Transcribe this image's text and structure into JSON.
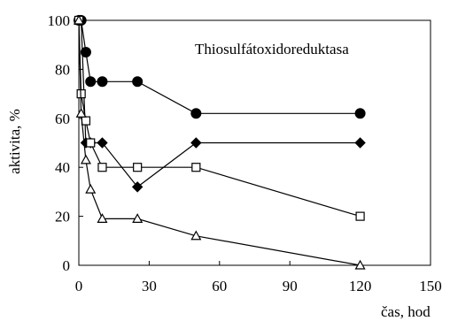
{
  "chart_data": {
    "type": "line",
    "annotation": "Thiosulfátoxidoreduktasa",
    "xlabel": "čas, hod",
    "ylabel": "aktivita, %",
    "xlim": [
      0,
      150
    ],
    "ylim": [
      0,
      100
    ],
    "x_ticks": [
      0,
      30,
      60,
      90,
      120,
      150
    ],
    "y_ticks": [
      0,
      20,
      40,
      60,
      80,
      100
    ],
    "grid": false,
    "legend": "none",
    "series": [
      {
        "marker": "filled-circle",
        "color": "#000000",
        "points": [
          [
            0,
            100
          ],
          [
            1,
            100
          ],
          [
            3,
            87
          ],
          [
            5,
            75
          ],
          [
            10,
            75
          ],
          [
            25,
            75
          ],
          [
            50,
            62
          ],
          [
            120,
            62
          ]
        ]
      },
      {
        "marker": "filled-diamond",
        "color": "#000000",
        "points": [
          [
            0,
            100
          ],
          [
            1,
            100
          ],
          [
            3,
            50
          ],
          [
            5,
            50
          ],
          [
            10,
            50
          ],
          [
            25,
            32
          ],
          [
            50,
            50
          ],
          [
            120,
            50
          ]
        ]
      },
      {
        "marker": "open-square",
        "color": "#000000",
        "points": [
          [
            0,
            100
          ],
          [
            1,
            70
          ],
          [
            3,
            59
          ],
          [
            5,
            50
          ],
          [
            10,
            40
          ],
          [
            25,
            40
          ],
          [
            50,
            40
          ],
          [
            120,
            20
          ]
        ]
      },
      {
        "marker": "open-triangle",
        "color": "#000000",
        "points": [
          [
            0,
            100
          ],
          [
            1,
            62
          ],
          [
            3,
            43
          ],
          [
            5,
            31
          ],
          [
            10,
            19
          ],
          [
            25,
            19
          ],
          [
            50,
            12
          ],
          [
            120,
            0
          ]
        ]
      }
    ]
  }
}
